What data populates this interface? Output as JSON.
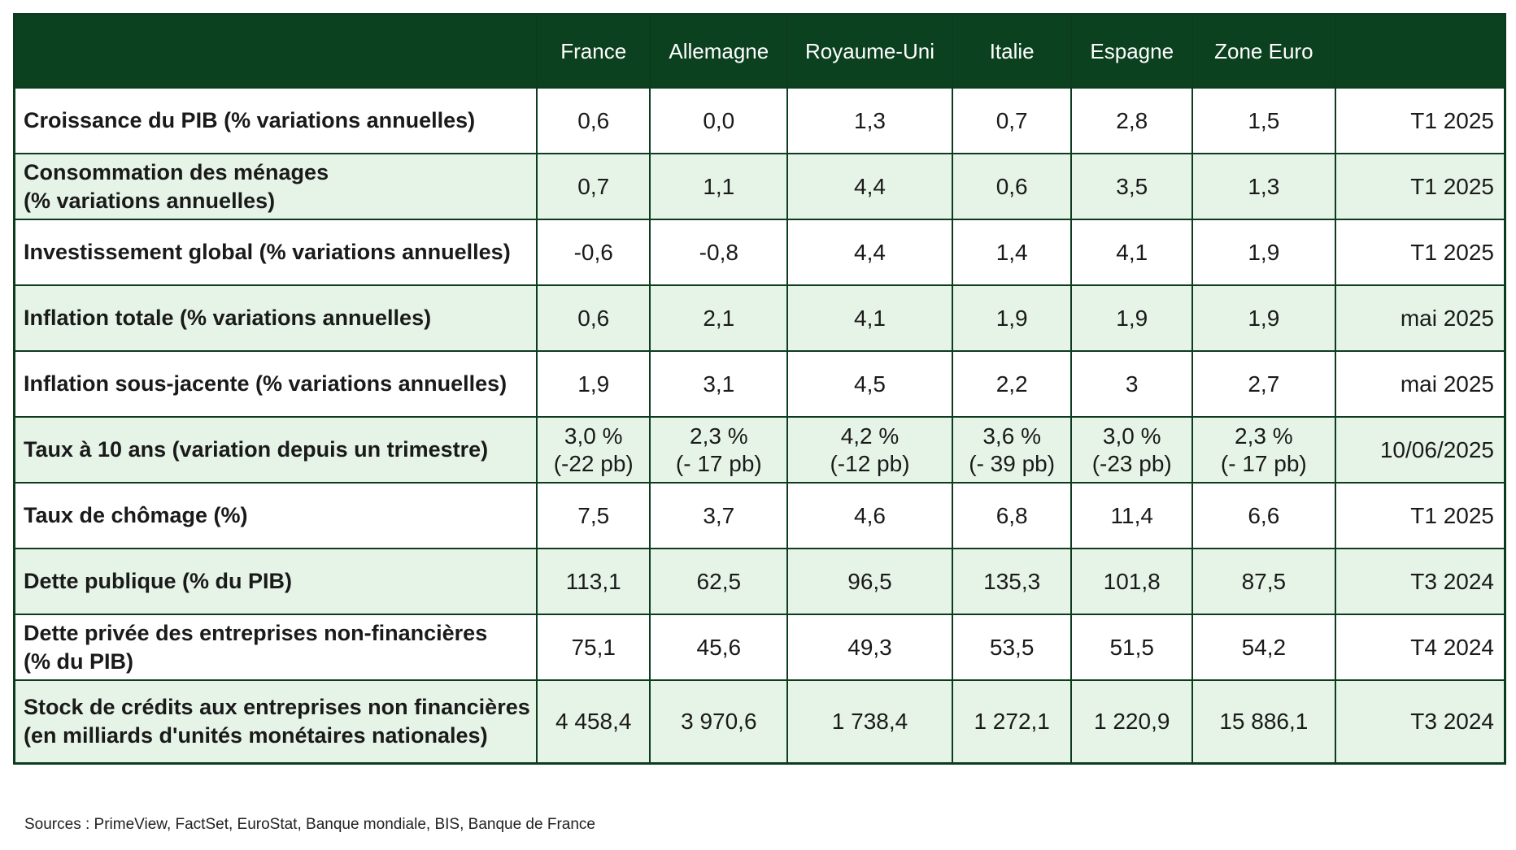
{
  "header": [
    "France",
    "Allemagne",
    "Royaume-Uni",
    "Italie",
    "Espagne",
    "Zone Euro"
  ],
  "rows": [
    {
      "label": "Croissance du PIB (% variations annuelles)",
      "values": [
        "0,6",
        "0,0",
        "1,3",
        "0,7",
        "2,8",
        "1,5"
      ],
      "date": "T1 2025"
    },
    {
      "label": "Consommation des ménages\n(% variations annuelles)",
      "values": [
        "0,7",
        "1,1",
        "4,4",
        "0,6",
        "3,5",
        "1,3"
      ],
      "date": "T1 2025"
    },
    {
      "label": "Investissement global (% variations annuelles)",
      "values": [
        "-0,6",
        "-0,8",
        "4,4",
        "1,4",
        "4,1",
        "1,9"
      ],
      "date": "T1 2025"
    },
    {
      "label": "Inflation totale (% variations annuelles)",
      "values": [
        "0,6",
        "2,1",
        "4,1",
        "1,9",
        "1,9",
        "1,9"
      ],
      "date": "mai 2025"
    },
    {
      "label": "Inflation sous-jacente (% variations annuelles)",
      "values": [
        "1,9",
        "3,1",
        "4,5",
        "2,2",
        "3",
        "2,7"
      ],
      "date": "mai 2025"
    },
    {
      "label": "Taux à 10 ans (variation depuis un trimestre)",
      "values": [
        "3,0 %\n(-22 pb)",
        "2,3 %\n(- 17 pb)",
        "4,2 %\n(-12 pb)",
        "3,6 %\n(- 39 pb)",
        "3,0 %\n(-23 pb)",
        "2,3 %\n(- 17 pb)"
      ],
      "date": "10/06/2025"
    },
    {
      "label": "Taux de chômage (%)",
      "values": [
        "7,5",
        "3,7",
        "4,6",
        "6,8",
        "11,4",
        "6,6"
      ],
      "date": "T1 2025"
    },
    {
      "label": "Dette publique (% du PIB)",
      "values": [
        "113,1",
        "62,5",
        "96,5",
        "135,3",
        "101,8",
        "87,5"
      ],
      "date": "T3 2024"
    },
    {
      "label": "Dette privée des entreprises non-financières\n(% du PIB)",
      "values": [
        "75,1",
        "45,6",
        "49,3",
        "53,5",
        "51,5",
        "54,2"
      ],
      "date": "T4 2024"
    },
    {
      "label": "Stock de crédits aux entreprises non financières\n(en milliards d'unités monétaires nationales)",
      "values": [
        "4 458,4",
        "3 970,6",
        "1 738,4",
        "1 272,1",
        "1 220,9",
        "15 886,1"
      ],
      "date": "T3 2024"
    }
  ],
  "sources": "Sources : PrimeView, FactSet, EuroStat, Banque mondiale, BIS, Banque de France",
  "colors": {
    "header_bg": "#0c4120",
    "alt_row": "#e6f4e7",
    "border": "#0d3b1e"
  }
}
